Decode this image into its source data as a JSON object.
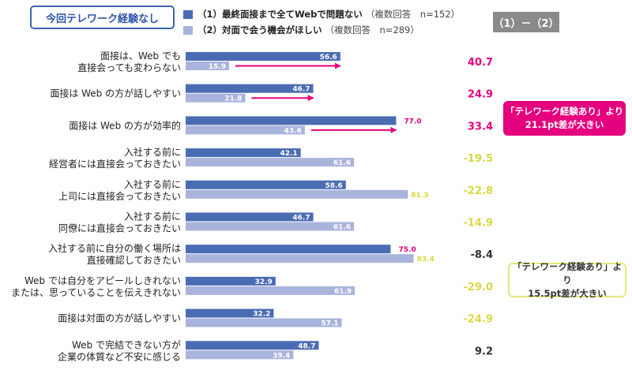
{
  "header_tag": "今回テレワーク経験なし",
  "diff_header": "（1）－（2）",
  "callouts": [
    {
      "line1": "「テレワーク経験あり」より",
      "line2": "21.1pt差が大きい"
    },
    {
      "line1": "「テレワーク経験あり」より",
      "line2": "15.5pt差が大きい"
    }
  ],
  "colors": {
    "series1": "#4a6cb3",
    "series2": "#a9b4dd",
    "highlight_pink": "#e5007e",
    "highlight_yellow": "#d8d844",
    "neutral": "#333333"
  },
  "chart_data": {
    "type": "bar",
    "orientation": "horizontal",
    "title": "",
    "xlabel": "（%）",
    "xlim": [
      0,
      100
    ],
    "xticks": [
      0,
      10,
      20,
      30,
      40,
      50,
      60,
      70,
      80,
      90,
      100
    ],
    "grid": false,
    "legend_position": "top",
    "categories": [
      [
        "面接は、Web でも",
        "直接会っても変わらない"
      ],
      [
        "面接は Web の方が話しやすい"
      ],
      [
        "面接は Web の方が効率的"
      ],
      [
        "入社する前に",
        "経営者には直接会っておきたい"
      ],
      [
        "入社する前に",
        "上司には直接会っておきたい"
      ],
      [
        "入社する前に",
        "同僚には直接会っておきたい"
      ],
      [
        "入社する前に自分の働く場所は",
        "直接確認しておきたい"
      ],
      [
        "Web では自分をアピールしきれない",
        "または、思っていることを伝えきれない"
      ],
      [
        "面接は対面の方が話しやすい"
      ],
      [
        "Web で完結できない方が",
        "企業の体質など不安に感じる"
      ]
    ],
    "series": [
      {
        "name": "（1）最終面接まで全てWebで問題ない",
        "note": "（複数回答　n=152）",
        "values": [
          56.6,
          46.7,
          77.0,
          42.1,
          58.6,
          46.7,
          75.0,
          32.9,
          32.2,
          48.7
        ]
      },
      {
        "name": "（2）対面で会う機会がほしい",
        "note": "（複数回答　n=289）",
        "values": [
          15.9,
          21.8,
          43.6,
          61.6,
          81.3,
          61.6,
          83.4,
          61.9,
          57.1,
          39.4
        ]
      }
    ],
    "differences": [
      "40.7",
      "24.9",
      "33.4",
      "-19.5",
      "-22.8",
      "-14.9",
      "-8.4",
      "-29.0",
      "-24.9",
      "9.2"
    ],
    "difference_colors": [
      "pink",
      "pink",
      "pink",
      "yellow",
      "yellow",
      "yellow",
      "neutral",
      "yellow",
      "yellow",
      "neutral"
    ],
    "outside_labels": {
      "s1": [
        2,
        6
      ],
      "s2": [
        4,
        6
      ]
    },
    "arrows": [
      0,
      1,
      2
    ]
  }
}
